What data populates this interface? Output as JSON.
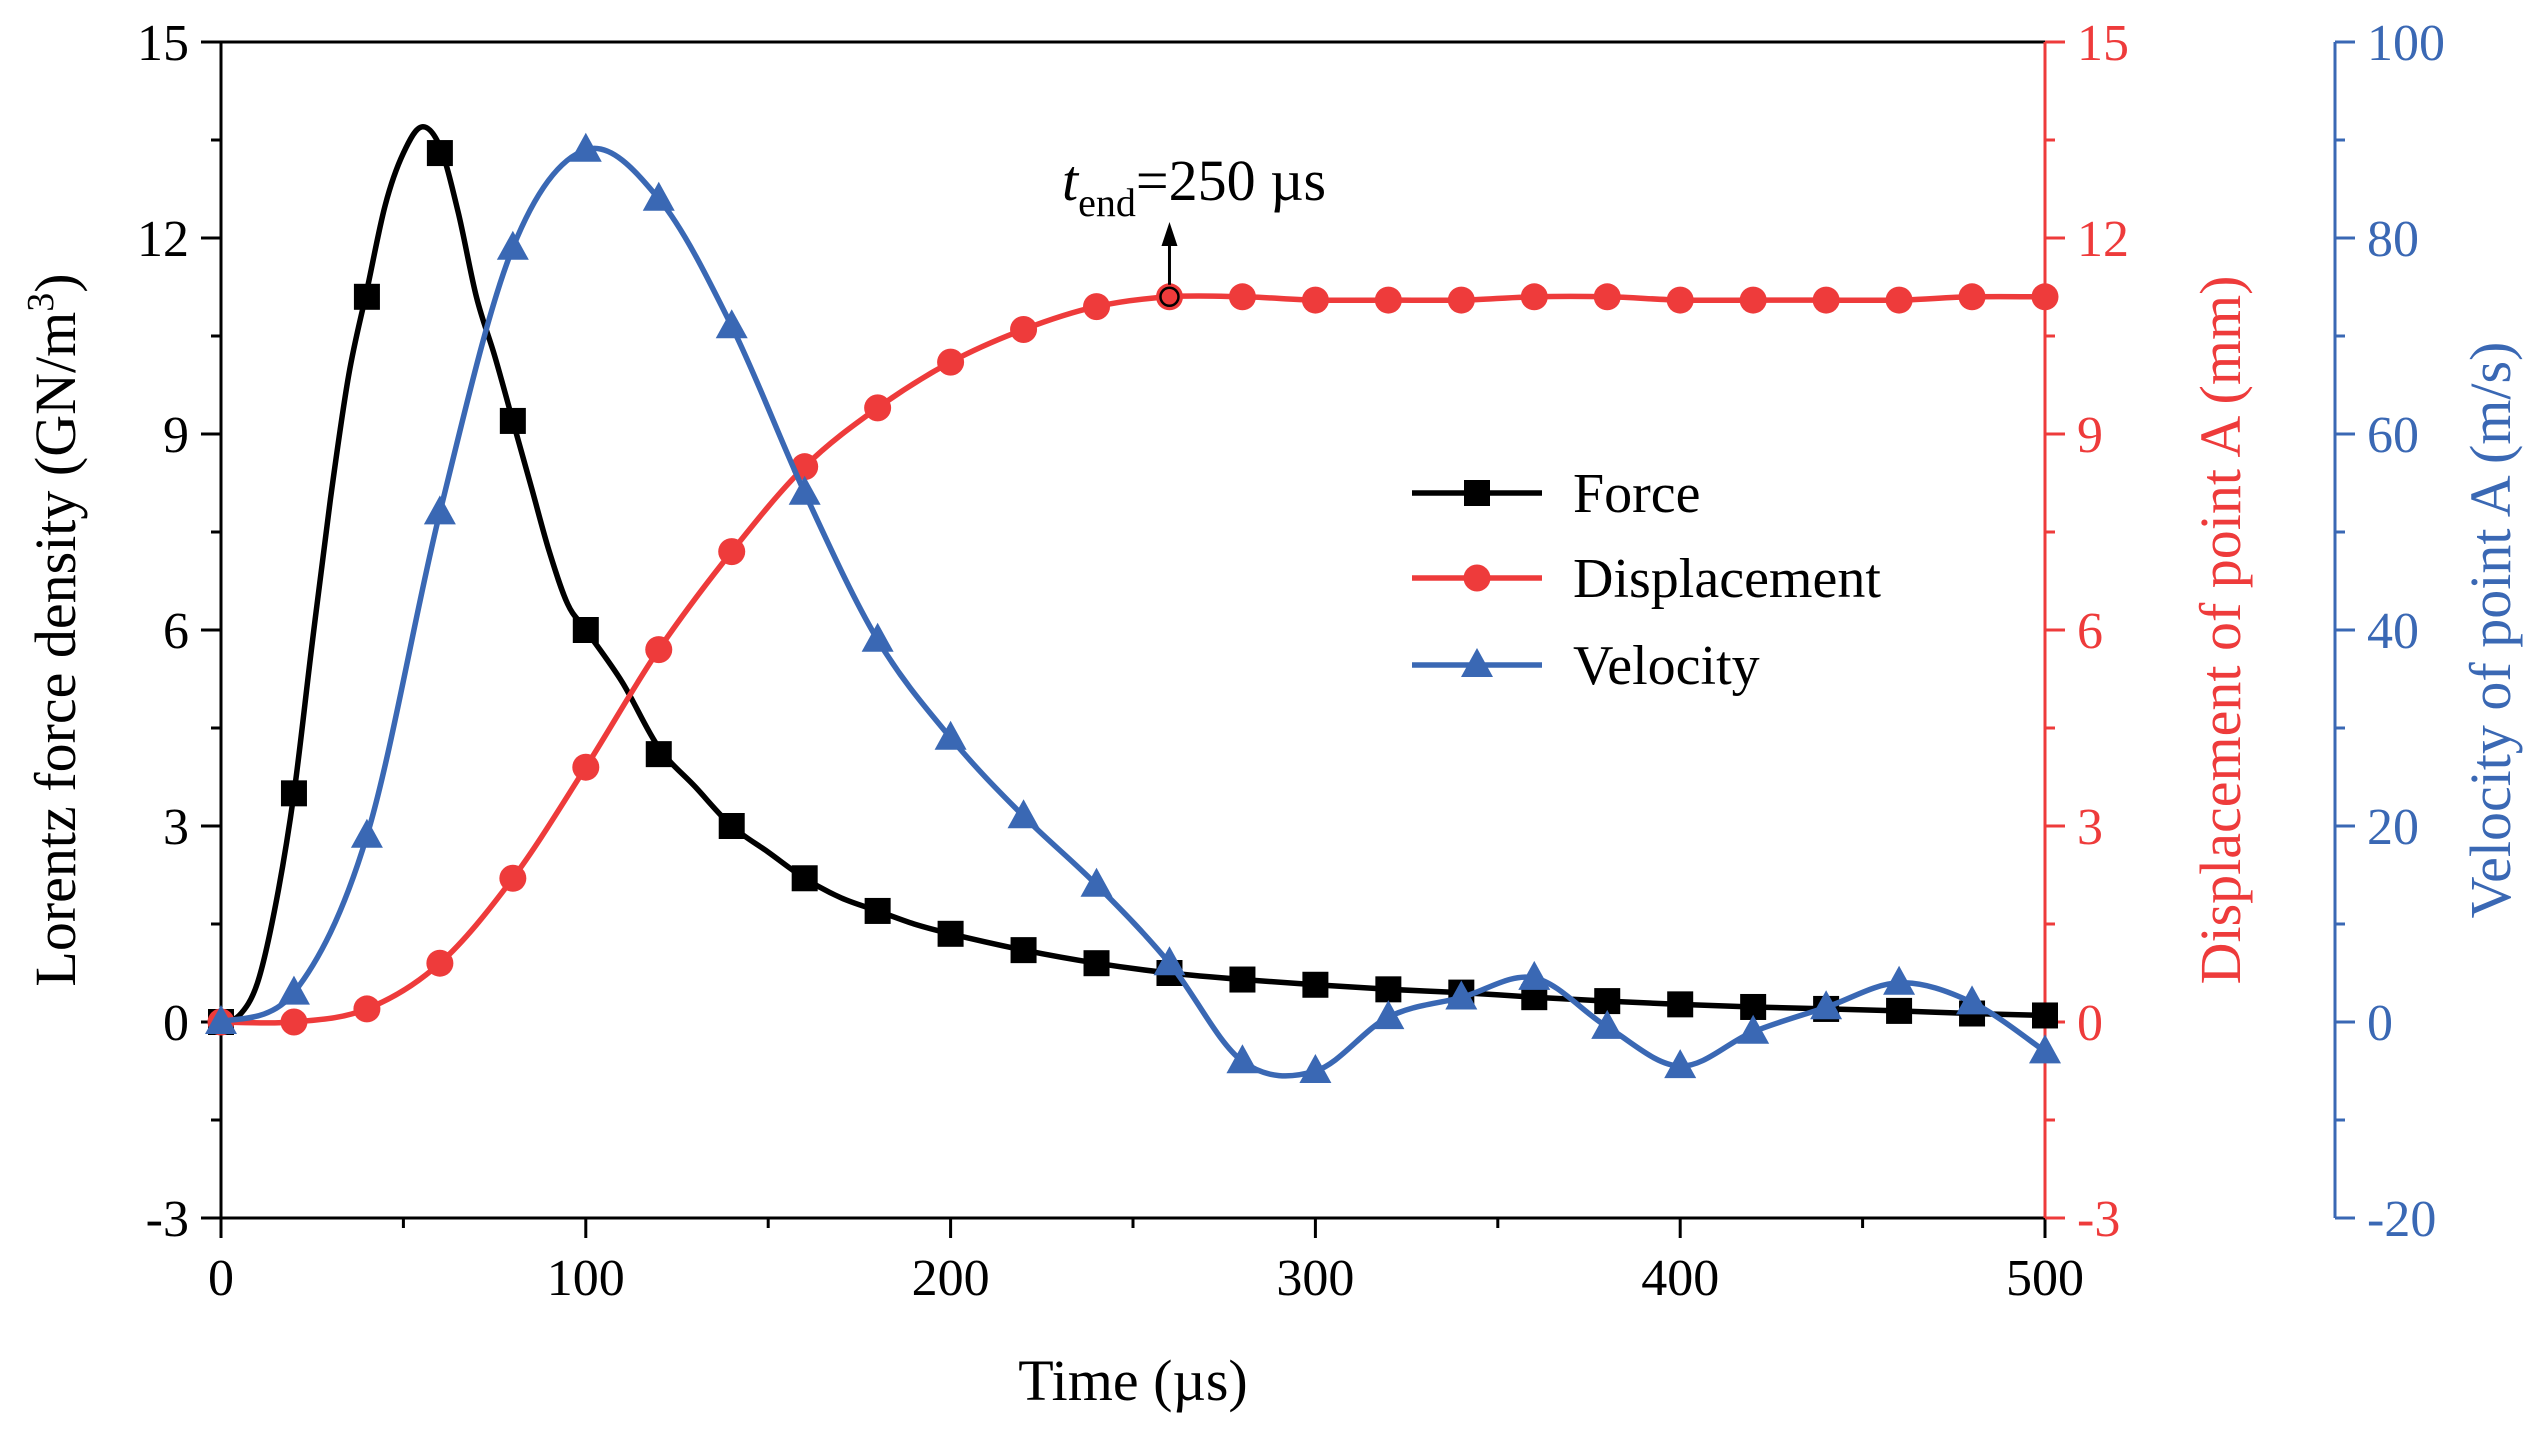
{
  "chart_data": {
    "type": "line",
    "title": "",
    "xlabel": "Time (µs)",
    "xlim": [
      0,
      500
    ],
    "xticks": [
      0,
      100,
      200,
      300,
      400,
      500
    ],
    "x_tick_labels": [
      "0",
      "100",
      "200",
      "300",
      "400",
      "500"
    ],
    "axes": {
      "left": {
        "label_main": "Lorentz force density (GN/m",
        "label_sup": "3",
        "label_end": ")",
        "ylim": [
          -3,
          15
        ],
        "ticks": [
          -3,
          0,
          3,
          6,
          9,
          12,
          15
        ],
        "tick_labels": [
          "-3",
          "0",
          "3",
          "6",
          "9",
          "12",
          "15"
        ],
        "color": "#000000"
      },
      "right1": {
        "label": "Displacement of point A (mm)",
        "ylim": [
          -3,
          15
        ],
        "ticks": [
          -3,
          0,
          3,
          6,
          9,
          12,
          15
        ],
        "tick_labels": [
          "-3",
          "0",
          "3",
          "6",
          "9",
          "12",
          "15"
        ],
        "color": "#ee3b3b"
      },
      "right2": {
        "label": "Velocity of point A (m/s)",
        "ylim": [
          -20,
          100
        ],
        "ticks": [
          -20,
          0,
          20,
          40,
          60,
          80,
          100
        ],
        "tick_labels": [
          "-20",
          "0",
          "20",
          "40",
          "60",
          "80",
          "100"
        ],
        "color": "#3a68b4"
      }
    },
    "series": [
      {
        "name": "Force",
        "axis": "left",
        "color": "#000000",
        "marker": "square",
        "markers": {
          "x": [
            0,
            20,
            40,
            60,
            80,
            100,
            120,
            140,
            160,
            180,
            200,
            220,
            240,
            260,
            280,
            300,
            320,
            340,
            360,
            380,
            400,
            420,
            440,
            460,
            480,
            500
          ],
          "y": [
            0,
            3.5,
            11.1,
            13.3,
            9.2,
            6.0,
            4.1,
            3.0,
            2.2,
            1.7,
            1.35,
            1.1,
            0.9,
            0.75,
            0.65,
            0.57,
            0.5,
            0.45,
            0.38,
            0.32,
            0.27,
            0.23,
            0.2,
            0.17,
            0.13,
            0.1
          ]
        },
        "curve": {
          "x": [
            0,
            5,
            10,
            15,
            20,
            25,
            30,
            35,
            40,
            45,
            50,
            55,
            60,
            65,
            70,
            75,
            80,
            85,
            90,
            95,
            100,
            110,
            120,
            130,
            140,
            150,
            160,
            170,
            180,
            190,
            200,
            220,
            240,
            260,
            280,
            300,
            320,
            340,
            360,
            380,
            400,
            420,
            440,
            460,
            480,
            500
          ],
          "y": [
            0,
            0.1,
            0.6,
            1.8,
            3.5,
            5.8,
            8.0,
            9.9,
            11.2,
            12.5,
            13.3,
            13.7,
            13.4,
            12.4,
            11.1,
            10.2,
            9.2,
            8.2,
            7.2,
            6.4,
            6.0,
            5.2,
            4.2,
            3.6,
            3.0,
            2.6,
            2.2,
            1.9,
            1.7,
            1.5,
            1.35,
            1.1,
            0.9,
            0.75,
            0.65,
            0.57,
            0.5,
            0.45,
            0.38,
            0.32,
            0.27,
            0.23,
            0.2,
            0.17,
            0.13,
            0.1
          ]
        }
      },
      {
        "name": "Displacement",
        "axis": "right1",
        "color": "#ee3b3b",
        "marker": "circle",
        "markers": {
          "x": [
            0,
            20,
            40,
            60,
            80,
            100,
            120,
            140,
            160,
            180,
            200,
            220,
            240,
            260,
            280,
            300,
            320,
            340,
            360,
            380,
            400,
            420,
            440,
            460,
            480,
            500
          ],
          "y": [
            0,
            0,
            0.2,
            0.9,
            2.2,
            3.9,
            5.7,
            7.2,
            8.5,
            9.4,
            10.1,
            10.6,
            10.95,
            11.1,
            11.1,
            11.05,
            11.05,
            11.05,
            11.1,
            11.1,
            11.05,
            11.05,
            11.05,
            11.05,
            11.1,
            11.1
          ]
        }
      },
      {
        "name": "Velocity",
        "axis": "right2",
        "color": "#3a68b4",
        "marker": "triangle",
        "markers": {
          "x": [
            0,
            20,
            40,
            60,
            80,
            100,
            120,
            140,
            160,
            180,
            200,
            220,
            240,
            260,
            280,
            300,
            320,
            340,
            360,
            380,
            400,
            420,
            440,
            460,
            480,
            500
          ],
          "y": [
            0,
            3,
            19,
            52,
            79,
            89,
            84,
            71,
            54,
            39,
            29,
            21,
            14,
            6,
            -4,
            -5,
            0.5,
            2.5,
            4.5,
            -0.5,
            -4.5,
            -1,
            1.5,
            4,
            2,
            -3
          ]
        }
      }
    ],
    "legend": {
      "position": "center-right",
      "entries": [
        "Force",
        "Displacement",
        "Velocity"
      ]
    },
    "annotation": {
      "x": 260,
      "y_disp": 11.1,
      "prefix": "t",
      "subscript": "end",
      "suffix": "=250 µs"
    }
  }
}
